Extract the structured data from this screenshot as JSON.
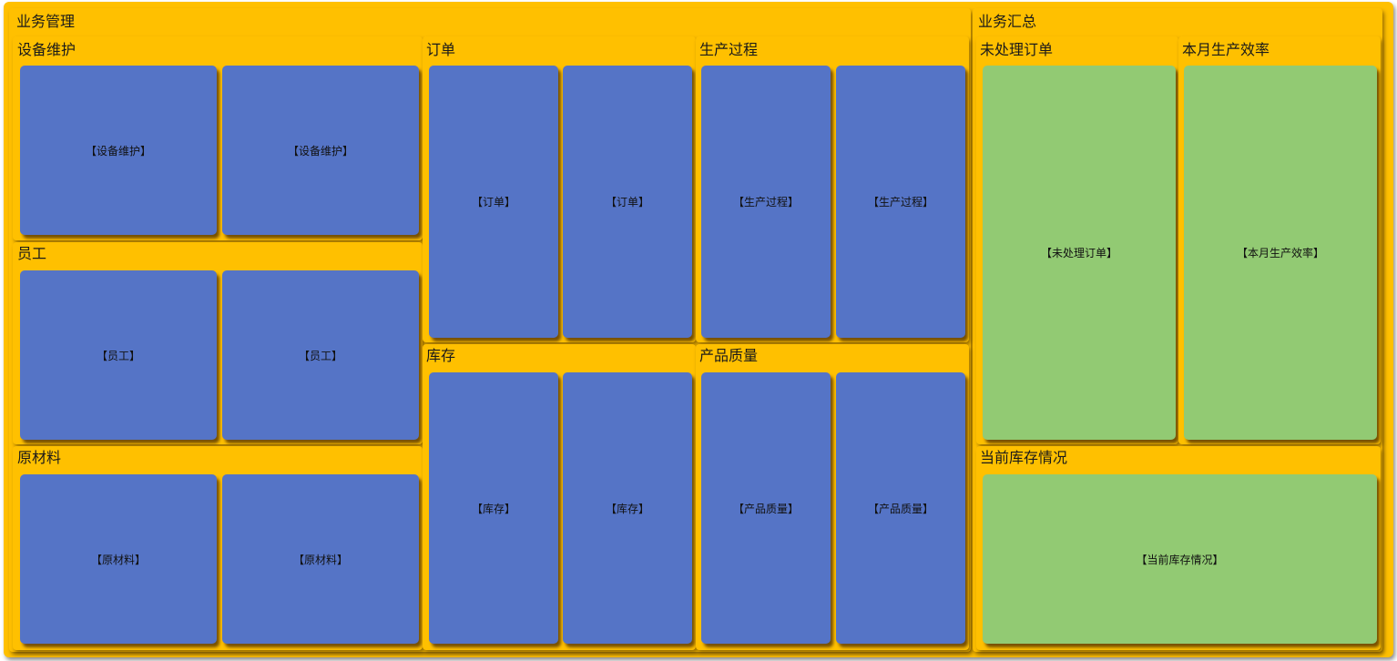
{
  "colors": {
    "background": "#FFC000",
    "blue_tile": "#5574C6",
    "green_tile": "#92CA73"
  },
  "left_panel": {
    "title": "业务管理"
  },
  "right_panel": {
    "title": "业务汇总"
  },
  "equipment": {
    "title": "设备维护",
    "tiles": [
      "【设备维护】",
      "【设备维护】"
    ]
  },
  "staff": {
    "title": "员工",
    "tiles": [
      "【员工】",
      "【员工】"
    ]
  },
  "materials": {
    "title": "原材料",
    "tiles": [
      "【原材料】",
      "【原材料】"
    ]
  },
  "orders": {
    "title": "订单",
    "tiles": [
      "【订单】",
      "【订单】"
    ]
  },
  "production": {
    "title": "生产过程",
    "tiles": [
      "【生产过程】",
      "【生产过程】"
    ]
  },
  "inventory": {
    "title": "库存",
    "tiles": [
      "【库存】",
      "【库存】"
    ]
  },
  "quality": {
    "title": "产品质量",
    "tiles": [
      "【产品质量】",
      "【产品质量】"
    ]
  },
  "pending_orders": {
    "title": "未处理订单",
    "tile": "【未处理订单】"
  },
  "efficiency": {
    "title": "本月生产效率",
    "tile": "【本月生产效率】"
  },
  "stock_status": {
    "title": "当前库存情况",
    "tile": "【当前库存情况】"
  }
}
